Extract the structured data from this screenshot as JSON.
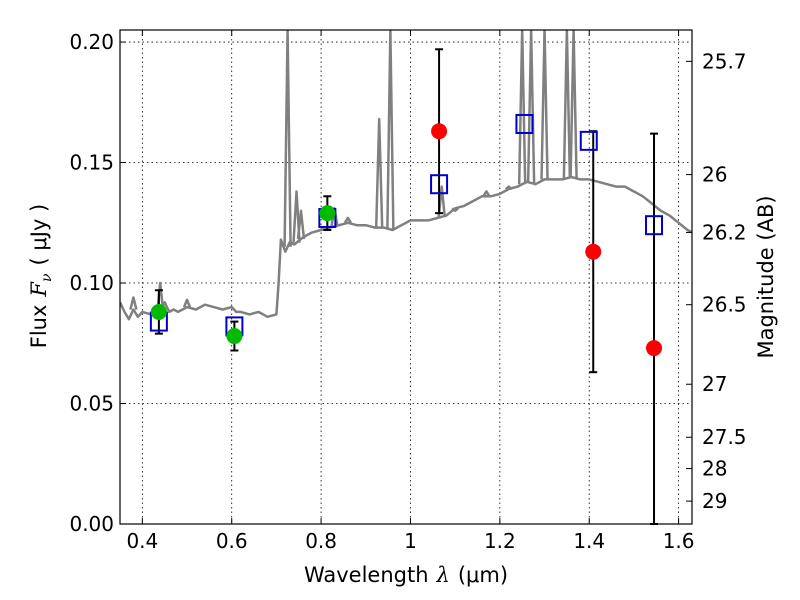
{
  "chart_data": {
    "type": "scatter",
    "xlabel": "Wavelength",
    "xlabel_symbol": "λ",
    "xlabel_unit": "(μm)",
    "ylabel": "Flux",
    "ylabel_symbol": "F",
    "ylabel_subscript": "ν",
    "ylabel_unit": "( μJy )",
    "y2label": "Magnitude (AB)",
    "xlim": [
      0.35,
      1.63
    ],
    "ylim": [
      0.0,
      0.205
    ],
    "grid": true,
    "x_ticks": [
      {
        "value": 0.4,
        "label": "0.4"
      },
      {
        "value": 0.6,
        "label": "0.6"
      },
      {
        "value": 0.8,
        "label": "0.8"
      },
      {
        "value": 1.0,
        "label": "1"
      },
      {
        "value": 1.2,
        "label": "1.2"
      },
      {
        "value": 1.4,
        "label": "1.4"
      },
      {
        "value": 1.6,
        "label": "1.6"
      }
    ],
    "y_ticks": [
      {
        "value": 0.0,
        "label": "0.00"
      },
      {
        "value": 0.05,
        "label": "0.05"
      },
      {
        "value": 0.1,
        "label": "0.10"
      },
      {
        "value": 0.15,
        "label": "0.15"
      },
      {
        "value": 0.2,
        "label": "0.20"
      }
    ],
    "y2_ticks": [
      {
        "flux": 0.192,
        "label": "25.7"
      },
      {
        "flux": 0.145,
        "label": "26"
      },
      {
        "flux": 0.121,
        "label": "26.2"
      },
      {
        "flux": 0.091,
        "label": "26.5"
      },
      {
        "flux": 0.058,
        "label": "27"
      },
      {
        "flux": 0.036,
        "label": "27.5"
      },
      {
        "flux": 0.023,
        "label": "28"
      },
      {
        "flux": 0.0095,
        "label": "29"
      }
    ],
    "series": [
      {
        "name": "model spectrum",
        "kind": "line",
        "color": "#808080",
        "points": [
          [
            0.35,
            0.092
          ],
          [
            0.36,
            0.088
          ],
          [
            0.37,
            0.085
          ],
          [
            0.38,
            0.089
          ],
          [
            0.39,
            0.086
          ],
          [
            0.4,
            0.088
          ],
          [
            0.42,
            0.087
          ],
          [
            0.44,
            0.088
          ],
          [
            0.45,
            0.092
          ],
          [
            0.46,
            0.088
          ],
          [
            0.47,
            0.089
          ],
          [
            0.48,
            0.088
          ],
          [
            0.5,
            0.09
          ],
          [
            0.52,
            0.089
          ],
          [
            0.54,
            0.091
          ],
          [
            0.56,
            0.09
          ],
          [
            0.58,
            0.089
          ],
          [
            0.6,
            0.09
          ],
          [
            0.61,
            0.088
          ],
          [
            0.62,
            0.088
          ],
          [
            0.64,
            0.087
          ],
          [
            0.66,
            0.088
          ],
          [
            0.68,
            0.086
          ],
          [
            0.7,
            0.087
          ],
          [
            0.705,
            0.1
          ],
          [
            0.71,
            0.118
          ],
          [
            0.72,
            0.113
          ],
          [
            0.73,
            0.117
          ],
          [
            0.74,
            0.116
          ],
          [
            0.76,
            0.119
          ],
          [
            0.78,
            0.121
          ],
          [
            0.8,
            0.122
          ],
          [
            0.82,
            0.123
          ],
          [
            0.84,
            0.124
          ],
          [
            0.86,
            0.125
          ],
          [
            0.88,
            0.124
          ],
          [
            0.9,
            0.124
          ],
          [
            0.92,
            0.123
          ],
          [
            0.94,
            0.123
          ],
          [
            0.96,
            0.122
          ],
          [
            0.98,
            0.124
          ],
          [
            1.0,
            0.126
          ],
          [
            1.02,
            0.126
          ],
          [
            1.04,
            0.126
          ],
          [
            1.06,
            0.127
          ],
          [
            1.08,
            0.128
          ],
          [
            1.1,
            0.131
          ],
          [
            1.12,
            0.132
          ],
          [
            1.14,
            0.134
          ],
          [
            1.16,
            0.136
          ],
          [
            1.18,
            0.136
          ],
          [
            1.2,
            0.137
          ],
          [
            1.22,
            0.139
          ],
          [
            1.24,
            0.14
          ],
          [
            1.26,
            0.142
          ],
          [
            1.28,
            0.141
          ],
          [
            1.3,
            0.143
          ],
          [
            1.32,
            0.143
          ],
          [
            1.34,
            0.143
          ],
          [
            1.36,
            0.144
          ],
          [
            1.38,
            0.143
          ],
          [
            1.4,
            0.143
          ],
          [
            1.42,
            0.142
          ],
          [
            1.44,
            0.141
          ],
          [
            1.46,
            0.14
          ],
          [
            1.48,
            0.14
          ],
          [
            1.5,
            0.138
          ],
          [
            1.52,
            0.136
          ],
          [
            1.54,
            0.133
          ],
          [
            1.56,
            0.13
          ],
          [
            1.58,
            0.128
          ],
          [
            1.6,
            0.125
          ],
          [
            1.62,
            0.122
          ],
          [
            1.63,
            0.121
          ]
        ],
        "spikes": [
          [
            0.38,
            0.094
          ],
          [
            0.44,
            0.1
          ],
          [
            0.5,
            0.093
          ],
          [
            0.725,
            0.205
          ],
          [
            0.745,
            0.138
          ],
          [
            0.755,
            0.13
          ],
          [
            0.83,
            0.131
          ],
          [
            0.86,
            0.127
          ],
          [
            0.93,
            0.168
          ],
          [
            0.955,
            0.205
          ],
          [
            1.07,
            0.14
          ],
          [
            1.1,
            0.13
          ],
          [
            1.17,
            0.138
          ],
          [
            1.22,
            0.14
          ],
          [
            1.25,
            0.205
          ],
          [
            1.27,
            0.205
          ],
          [
            1.3,
            0.205
          ],
          [
            1.35,
            0.205
          ],
          [
            1.365,
            0.205
          ]
        ]
      },
      {
        "name": "green points",
        "kind": "points",
        "color": "#00bb00",
        "points": [
          {
            "x": 0.437,
            "y": 0.088,
            "yerr": 0.009
          },
          {
            "x": 0.606,
            "y": 0.078,
            "yerr": 0.006
          },
          {
            "x": 0.814,
            "y": 0.129,
            "yerr": 0.007
          }
        ]
      },
      {
        "name": "red points",
        "kind": "points",
        "color": "#ff0000",
        "points": [
          {
            "x": 1.064,
            "y": 0.163,
            "yerr": 0.034
          },
          {
            "x": 1.409,
            "y": 0.113,
            "yerr": 0.05
          },
          {
            "x": 1.545,
            "y": 0.073,
            "yerr": 0.089
          }
        ]
      },
      {
        "name": "blue squares",
        "kind": "squares",
        "color": "#0000cc",
        "points": [
          {
            "x": 0.437,
            "y": 0.084
          },
          {
            "x": 0.606,
            "y": 0.082
          },
          {
            "x": 0.814,
            "y": 0.127
          },
          {
            "x": 1.064,
            "y": 0.141
          },
          {
            "x": 1.255,
            "y": 0.166
          },
          {
            "x": 1.399,
            "y": 0.159
          },
          {
            "x": 1.545,
            "y": 0.124
          }
        ]
      }
    ]
  }
}
